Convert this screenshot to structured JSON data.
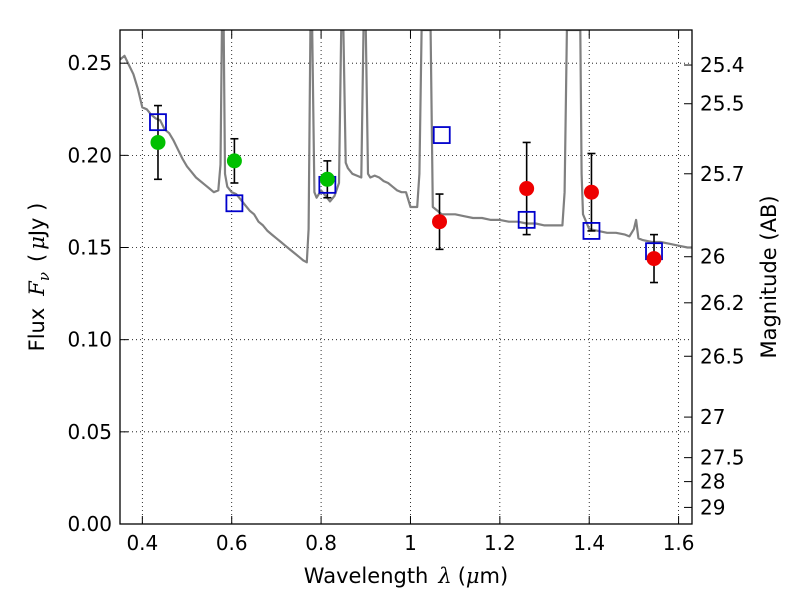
{
  "chart_data": {
    "type": "scatter",
    "xlabel_prefix": "Wavelength",
    "xlabel_symbol": "λ",
    "xlabel_unit_open": "(",
    "xlabel_unit_mu": "μ",
    "xlabel_unit_close": "m)",
    "ylabel_prefix": "Flux",
    "ylabel_symbol": "F",
    "ylabel_subscript": "ν",
    "ylabel_unit_open": "(",
    "ylabel_unit_mu": "μ",
    "ylabel_unit_close": "Jy )",
    "y2label": "Magnitude (AB)",
    "xlim": [
      0.35,
      1.63
    ],
    "ylim": [
      0.0,
      0.268
    ],
    "grid": true,
    "x_ticks": [
      0.4,
      0.6,
      0.8,
      1.0,
      1.2,
      1.4,
      1.6
    ],
    "x_tick_labels": [
      "0.4",
      "0.6",
      "0.8",
      "1",
      "1.2",
      "1.4",
      "1.6"
    ],
    "y_ticks": [
      0.0,
      0.05,
      0.1,
      0.15,
      0.2,
      0.25
    ],
    "y_tick_labels": [
      "0.00",
      "0.05",
      "0.10",
      "0.15",
      "0.20",
      "0.25"
    ],
    "mag_ticks": [
      {
        "label": "25.4",
        "flux": 0.249
      },
      {
        "label": "25.5",
        "flux": 0.228
      },
      {
        "label": "25.7",
        "flux": 0.19
      },
      {
        "label": "26",
        "flux": 0.145
      },
      {
        "label": "26.2",
        "flux": 0.12
      },
      {
        "label": "26.5",
        "flux": 0.091
      },
      {
        "label": "27",
        "flux": 0.058
      },
      {
        "label": "27.5",
        "flux": 0.036
      },
      {
        "label": "28",
        "flux": 0.023
      },
      {
        "label": "29",
        "flux": 0.009
      }
    ],
    "colors": {
      "model": "#808080",
      "green": "#00c000",
      "red": "#ee0000",
      "box": "#0000cc",
      "error": "#000000"
    },
    "observed_green": [
      {
        "x": 0.435,
        "y": 0.207,
        "err": 0.02
      },
      {
        "x": 0.606,
        "y": 0.197,
        "err": 0.012
      },
      {
        "x": 0.814,
        "y": 0.187,
        "err": 0.01
      }
    ],
    "observed_red": [
      {
        "x": 1.065,
        "y": 0.164,
        "err": 0.015
      },
      {
        "x": 1.26,
        "y": 0.182,
        "err": 0.025
      },
      {
        "x": 1.405,
        "y": 0.18,
        "err": 0.021
      },
      {
        "x": 1.545,
        "y": 0.144,
        "err": 0.013
      }
    ],
    "model_photometry": [
      {
        "x": 0.435,
        "y": 0.218
      },
      {
        "x": 0.606,
        "y": 0.174
      },
      {
        "x": 0.814,
        "y": 0.184
      },
      {
        "x": 1.07,
        "y": 0.211
      },
      {
        "x": 1.26,
        "y": 0.165
      },
      {
        "x": 1.405,
        "y": 0.159
      },
      {
        "x": 1.545,
        "y": 0.148
      }
    ],
    "model_spectrum": [
      [
        0.35,
        0.252
      ],
      [
        0.36,
        0.254
      ],
      [
        0.37,
        0.249
      ],
      [
        0.38,
        0.244
      ],
      [
        0.39,
        0.236
      ],
      [
        0.4,
        0.226
      ],
      [
        0.41,
        0.225
      ],
      [
        0.42,
        0.222
      ],
      [
        0.43,
        0.22
      ],
      [
        0.44,
        0.219
      ],
      [
        0.45,
        0.214
      ],
      [
        0.46,
        0.212
      ],
      [
        0.47,
        0.208
      ],
      [
        0.48,
        0.203
      ],
      [
        0.49,
        0.198
      ],
      [
        0.5,
        0.194
      ],
      [
        0.51,
        0.191
      ],
      [
        0.52,
        0.188
      ],
      [
        0.53,
        0.186
      ],
      [
        0.54,
        0.184
      ],
      [
        0.55,
        0.182
      ],
      [
        0.56,
        0.18
      ],
      [
        0.57,
        0.181
      ],
      [
        0.575,
        0.195
      ],
      [
        0.578,
        0.268
      ],
      [
        0.582,
        0.268
      ],
      [
        0.585,
        0.19
      ],
      [
        0.59,
        0.183
      ],
      [
        0.6,
        0.18
      ],
      [
        0.61,
        0.179
      ],
      [
        0.62,
        0.176
      ],
      [
        0.63,
        0.173
      ],
      [
        0.64,
        0.17
      ],
      [
        0.65,
        0.168
      ],
      [
        0.66,
        0.164
      ],
      [
        0.67,
        0.162
      ],
      [
        0.68,
        0.159
      ],
      [
        0.69,
        0.157
      ],
      [
        0.7,
        0.155
      ],
      [
        0.71,
        0.153
      ],
      [
        0.72,
        0.151
      ],
      [
        0.73,
        0.149
      ],
      [
        0.74,
        0.147
      ],
      [
        0.75,
        0.145
      ],
      [
        0.76,
        0.143
      ],
      [
        0.768,
        0.142
      ],
      [
        0.772,
        0.16
      ],
      [
        0.776,
        0.268
      ],
      [
        0.78,
        0.268
      ],
      [
        0.785,
        0.18
      ],
      [
        0.79,
        0.177
      ],
      [
        0.8,
        0.181
      ],
      [
        0.81,
        0.178
      ],
      [
        0.82,
        0.175
      ],
      [
        0.83,
        0.178
      ],
      [
        0.84,
        0.185
      ],
      [
        0.845,
        0.268
      ],
      [
        0.85,
        0.268
      ],
      [
        0.855,
        0.196
      ],
      [
        0.86,
        0.193
      ],
      [
        0.87,
        0.19
      ],
      [
        0.88,
        0.189
      ],
      [
        0.89,
        0.188
      ],
      [
        0.895,
        0.268
      ],
      [
        0.9,
        0.268
      ],
      [
        0.905,
        0.19
      ],
      [
        0.91,
        0.188
      ],
      [
        0.92,
        0.189
      ],
      [
        0.93,
        0.188
      ],
      [
        0.94,
        0.186
      ],
      [
        0.95,
        0.185
      ],
      [
        0.96,
        0.183
      ],
      [
        0.97,
        0.181
      ],
      [
        0.98,
        0.18
      ],
      [
        0.99,
        0.18
      ],
      [
        1.0,
        0.172
      ],
      [
        1.015,
        0.172
      ],
      [
        1.02,
        0.19
      ],
      [
        1.025,
        0.268
      ],
      [
        1.045,
        0.268
      ],
      [
        1.05,
        0.172
      ],
      [
        1.06,
        0.17
      ],
      [
        1.07,
        0.168
      ],
      [
        1.08,
        0.168
      ],
      [
        1.1,
        0.168
      ],
      [
        1.12,
        0.167
      ],
      [
        1.14,
        0.166
      ],
      [
        1.16,
        0.166
      ],
      [
        1.18,
        0.165
      ],
      [
        1.2,
        0.165
      ],
      [
        1.22,
        0.164
      ],
      [
        1.24,
        0.164
      ],
      [
        1.26,
        0.163
      ],
      [
        1.28,
        0.163
      ],
      [
        1.3,
        0.162
      ],
      [
        1.32,
        0.162
      ],
      [
        1.34,
        0.162
      ],
      [
        1.345,
        0.18
      ],
      [
        1.35,
        0.268
      ],
      [
        1.36,
        0.268
      ],
      [
        1.375,
        0.268
      ],
      [
        1.38,
        0.268
      ],
      [
        1.383,
        0.19
      ],
      [
        1.386,
        0.168
      ],
      [
        1.4,
        0.16
      ],
      [
        1.42,
        0.159
      ],
      [
        1.44,
        0.158
      ],
      [
        1.46,
        0.158
      ],
      [
        1.48,
        0.157
      ],
      [
        1.49,
        0.156
      ],
      [
        1.5,
        0.16
      ],
      [
        1.505,
        0.165
      ],
      [
        1.51,
        0.155
      ],
      [
        1.52,
        0.154
      ],
      [
        1.54,
        0.153
      ],
      [
        1.56,
        0.153
      ],
      [
        1.58,
        0.152
      ],
      [
        1.6,
        0.151
      ],
      [
        1.62,
        0.15
      ],
      [
        1.63,
        0.15
      ]
    ]
  }
}
